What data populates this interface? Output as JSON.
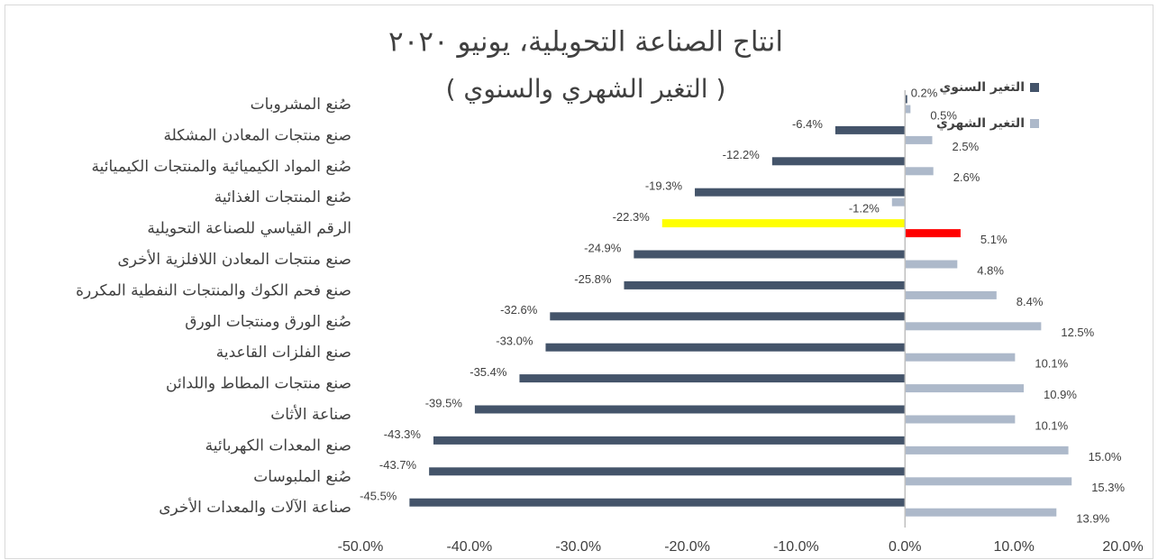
{
  "chart_data": {
    "type": "hbar",
    "title": "انتاج الصناعة التحويلية، يونيو ٢٠٢٠",
    "subtitle": "( التغير الشهري والسنوي )",
    "categories": [
      "صُنع المشروبات",
      "صنع منتجات المعادن المشكلة",
      "صُنع المواد الكيميائية والمنتجات الكيميائية",
      "صُنع المنتجات الغذائية",
      "الرقم القياسي للصناعة التحويلية",
      "صنع منتجات المعادن اللافلزية الأخرى",
      "صنع فحم الكوك والمنتجات النفطية المكررة",
      "صُنع الورق ومنتجات الورق",
      "صنع الفلزات القاعدية",
      "صنع منتجات المطاط واللدائن",
      "صناعة الأثاث",
      "صنع المعدات الكهربائية",
      "صُنع الملبوسات",
      "صناعة الآلات والمعدات الأخرى"
    ],
    "series": [
      {
        "name": "التغير السنوي",
        "color": "#44546a",
        "colors": [
          "#44546a",
          "#44546a",
          "#44546a",
          "#44546a",
          "#ffff00",
          "#44546a",
          "#44546a",
          "#44546a",
          "#44546a",
          "#44546a",
          "#44546a",
          "#44546a",
          "#44546a",
          "#44546a"
        ],
        "values": [
          0.2,
          -6.4,
          -12.2,
          -19.3,
          -22.3,
          -24.9,
          -25.8,
          -32.6,
          -33.0,
          -35.4,
          -39.5,
          -43.3,
          -43.7,
          -45.5
        ],
        "value_labels": [
          "0.2%",
          "-6.4%",
          "-12.2%",
          "-19.3%",
          "-22.3%",
          "-24.9%",
          "-25.8%",
          "-32.6%",
          "-33.0%",
          "-35.4%",
          "-39.5%",
          "-43.3%",
          "-43.7%",
          "-45.5%"
        ]
      },
      {
        "name": "التغير الشهري",
        "color": "#adb9ca",
        "colors": [
          "#adb9ca",
          "#adb9ca",
          "#adb9ca",
          "#adb9ca",
          "#ff0000",
          "#adb9ca",
          "#adb9ca",
          "#adb9ca",
          "#adb9ca",
          "#adb9ca",
          "#adb9ca",
          "#adb9ca",
          "#adb9ca",
          "#adb9ca"
        ],
        "values": [
          0.5,
          2.5,
          2.6,
          -1.2,
          5.1,
          4.8,
          8.4,
          12.5,
          10.1,
          10.9,
          10.1,
          15.0,
          15.3,
          13.9
        ],
        "value_labels": [
          "0.5%",
          "2.5%",
          "2.6%",
          "-1.2%",
          "5.1%",
          "4.8%",
          "8.4%",
          "12.5%",
          "10.1%",
          "10.9%",
          "10.1%",
          "15.0%",
          "15.3%",
          "13.9%"
        ]
      }
    ],
    "xlim": [
      -50,
      20
    ],
    "xticks": [
      {
        "value": -50,
        "label": "-50.0%"
      },
      {
        "value": -40,
        "label": "-40.0%"
      },
      {
        "value": -30,
        "label": "-30.0%"
      },
      {
        "value": -20,
        "label": "-20.0%"
      },
      {
        "value": -10,
        "label": "-10.0%"
      },
      {
        "value": 0,
        "label": "0.0%"
      },
      {
        "value": 10,
        "label": "10.0%"
      },
      {
        "value": 20,
        "label": "20.0%"
      }
    ],
    "grid": false,
    "legend": "top-right"
  }
}
